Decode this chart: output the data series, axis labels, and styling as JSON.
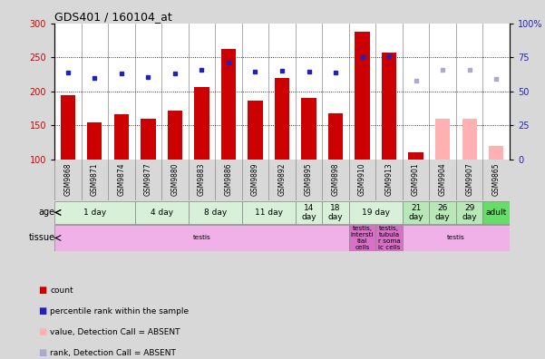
{
  "title": "GDS401 / 160104_at",
  "samples": [
    "GSM9868",
    "GSM9871",
    "GSM9874",
    "GSM9877",
    "GSM9880",
    "GSM9883",
    "GSM9886",
    "GSM9889",
    "GSM9892",
    "GSM9895",
    "GSM9898",
    "GSM9910",
    "GSM9913",
    "GSM9901",
    "GSM9904",
    "GSM9907",
    "GSM9865"
  ],
  "bar_values": [
    194,
    154,
    166,
    160,
    172,
    206,
    262,
    186,
    220,
    190,
    167,
    287,
    257,
    110,
    null,
    null,
    null
  ],
  "bar_values_absent": [
    null,
    null,
    null,
    null,
    null,
    null,
    null,
    null,
    null,
    null,
    null,
    null,
    null,
    null,
    160,
    160,
    120
  ],
  "dot_values": [
    228,
    220,
    226,
    221,
    226,
    231,
    242,
    229,
    230,
    229,
    228,
    250,
    252,
    null,
    null,
    null,
    null
  ],
  "dot_values_absent": [
    null,
    null,
    null,
    null,
    null,
    null,
    null,
    null,
    null,
    null,
    null,
    null,
    null,
    215,
    232,
    232,
    218
  ],
  "ylim_left": [
    100,
    300
  ],
  "ylim_right": [
    0,
    100
  ],
  "yticks_left": [
    100,
    150,
    200,
    250,
    300
  ],
  "yticks_right": [
    0,
    25,
    50,
    75,
    100
  ],
  "age_groups": [
    {
      "label": "1 day",
      "start": 0,
      "end": 3,
      "color": "#d8f0d8"
    },
    {
      "label": "4 day",
      "start": 3,
      "end": 5,
      "color": "#d8f0d8"
    },
    {
      "label": "8 day",
      "start": 5,
      "end": 7,
      "color": "#d8f0d8"
    },
    {
      "label": "11 day",
      "start": 7,
      "end": 9,
      "color": "#d8f0d8"
    },
    {
      "label": "14\nday",
      "start": 9,
      "end": 10,
      "color": "#d8f0d8"
    },
    {
      "label": "18\nday",
      "start": 10,
      "end": 11,
      "color": "#d8f0d8"
    },
    {
      "label": "19 day",
      "start": 11,
      "end": 13,
      "color": "#d8f0d8"
    },
    {
      "label": "21\nday",
      "start": 13,
      "end": 14,
      "color": "#b8e8b8"
    },
    {
      "label": "26\nday",
      "start": 14,
      "end": 15,
      "color": "#b8e8b8"
    },
    {
      "label": "29\nday",
      "start": 15,
      "end": 16,
      "color": "#b8e8b8"
    },
    {
      "label": "adult",
      "start": 16,
      "end": 17,
      "color": "#66dd66"
    }
  ],
  "tissue_groups": [
    {
      "label": "testis",
      "start": 0,
      "end": 11,
      "color": "#f0b0e8"
    },
    {
      "label": "testis,\nintersti\ntial\ncells",
      "start": 11,
      "end": 12,
      "color": "#d870c8"
    },
    {
      "label": "testis,\ntubula\nr soma\nic cells",
      "start": 12,
      "end": 13,
      "color": "#d870c8"
    },
    {
      "label": "testis",
      "start": 13,
      "end": 17,
      "color": "#f0b0e8"
    }
  ],
  "bar_color": "#cc0000",
  "bar_absent_color": "#ffb0b0",
  "dot_color": "#2222bb",
  "dot_absent_color": "#aaaacc",
  "bg_color": "#d8d8d8",
  "plot_bg": "#ffffff",
  "sample_band_color": "#c8c8c8",
  "hline_color": "#000000",
  "vline_color": "#888888"
}
